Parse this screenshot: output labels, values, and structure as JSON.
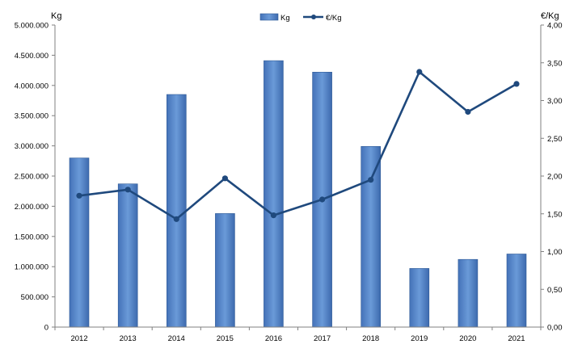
{
  "chart_data": {
    "type": "bar",
    "categories": [
      "2012",
      "2013",
      "2014",
      "2015",
      "2016",
      "2017",
      "2018",
      "2019",
      "2020",
      "2021"
    ],
    "series": [
      {
        "name": "Kg",
        "type": "bar",
        "axis": "left",
        "color": "#4f81bd",
        "values": [
          2800000,
          2370000,
          3850000,
          1880000,
          4410000,
          4220000,
          2990000,
          970000,
          1120000,
          1210000
        ]
      },
      {
        "name": "€/Kg",
        "type": "line",
        "axis": "right",
        "color": "#1f497d",
        "values": [
          1.74,
          1.82,
          1.43,
          1.97,
          1.48,
          1.69,
          1.95,
          3.38,
          2.85,
          3.22
        ]
      }
    ],
    "y_left": {
      "label": "Kg",
      "range": [
        0,
        5000000
      ],
      "ticks": [
        "0",
        "500.000",
        "1.000.000",
        "1.500.000",
        "2.000.000",
        "2.500.000",
        "3.000.000",
        "3.500.000",
        "4.000.000",
        "4.500.000",
        "5.000.000"
      ]
    },
    "y_right": {
      "label": "€/Kg",
      "range": [
        0,
        4
      ],
      "ticks": [
        "0,00",
        "0,50",
        "1,00",
        "1,50",
        "2,00",
        "2,50",
        "3,00",
        "3,50",
        "4,00"
      ]
    },
    "legend": {
      "position": "top"
    },
    "grid": false
  }
}
